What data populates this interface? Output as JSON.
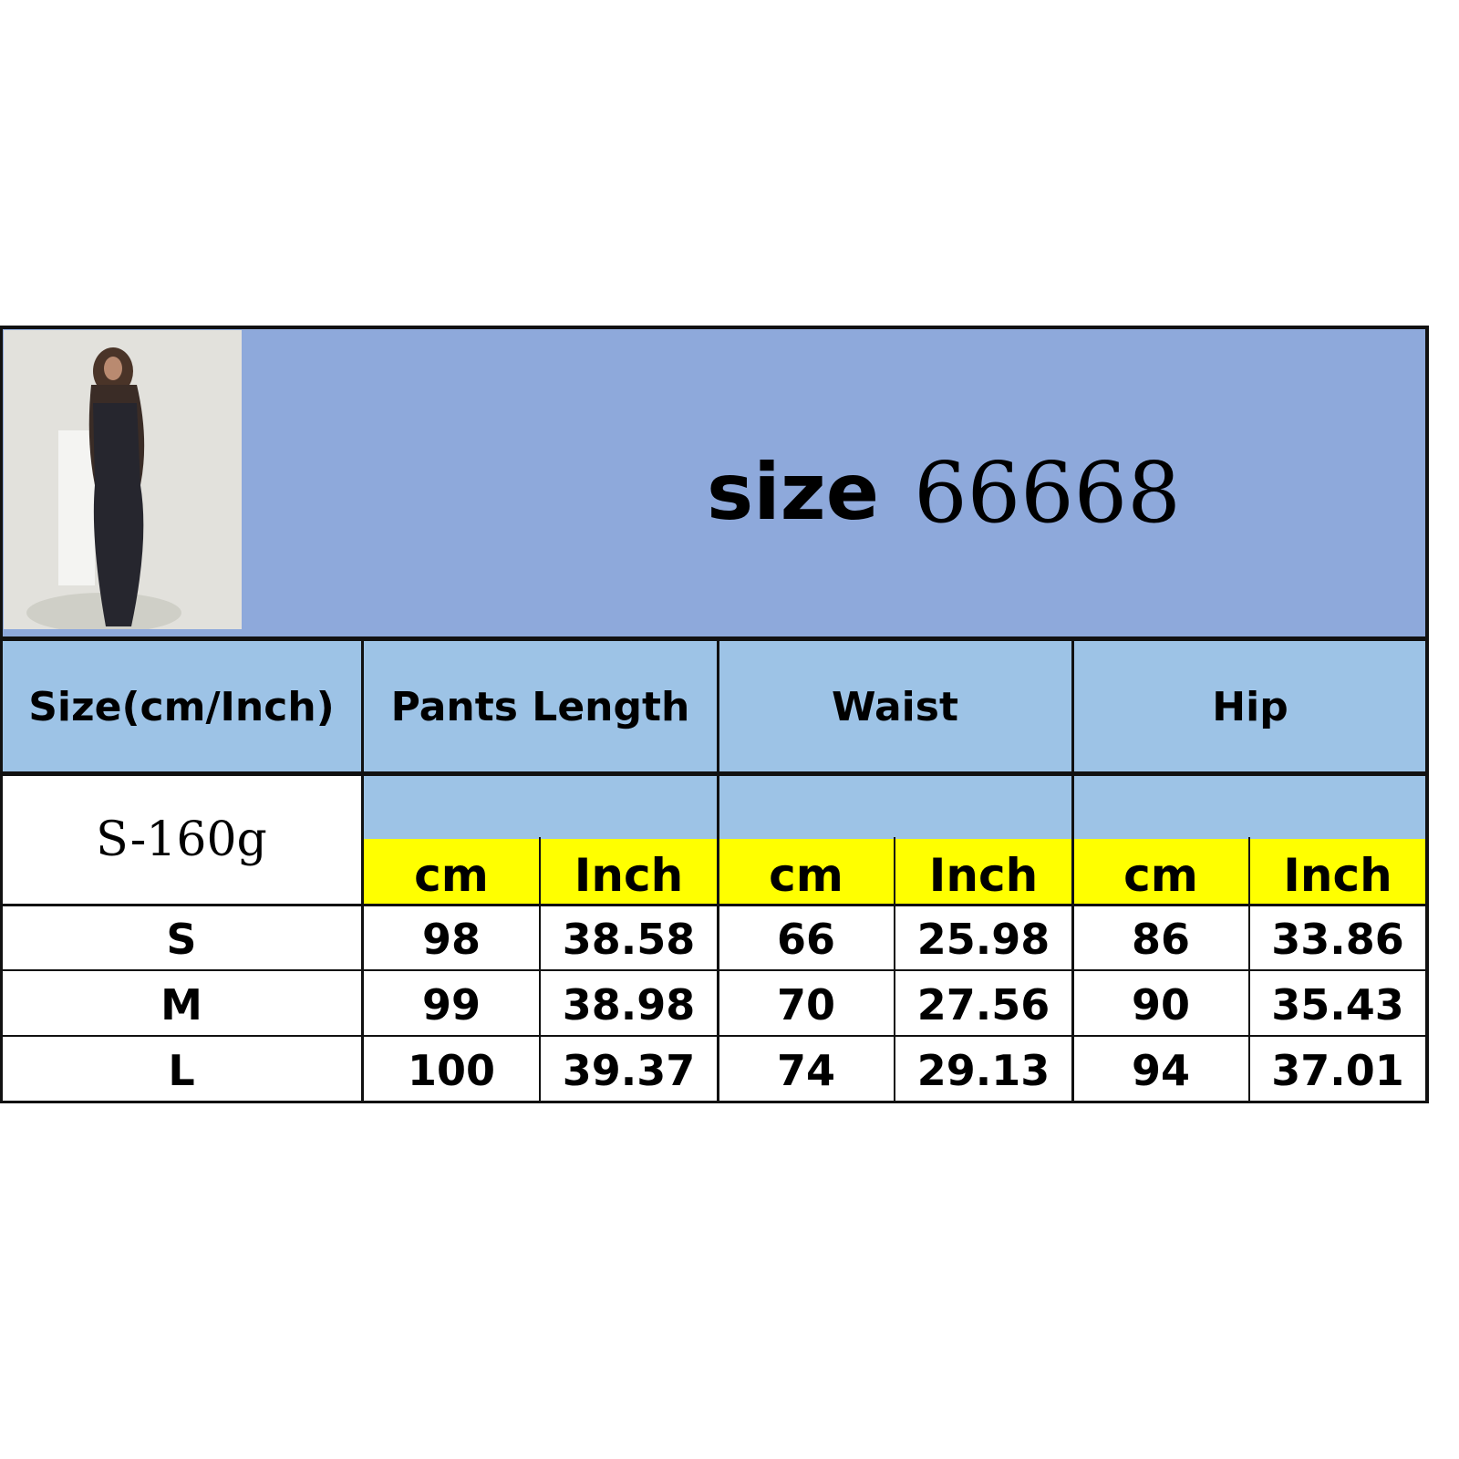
{
  "title": {
    "prefix": "size",
    "code": "66668"
  },
  "colors": {
    "banner": "#8EA9DB",
    "header": "#9DC3E6",
    "unit_row": "#FFFF00",
    "border": "#111111"
  },
  "photo": {
    "alt": "model wearing black lace top and maxi skirt"
  },
  "header": {
    "size_label": "Size(cm/Inch)",
    "columns": [
      "Pants Length",
      "Waist",
      "Hip"
    ]
  },
  "weight_label": "S-160g",
  "units": [
    "cm",
    "Inch",
    "cm",
    "Inch",
    "cm",
    "Inch"
  ],
  "rows": [
    {
      "size": "S",
      "values": [
        "98",
        "38.58",
        "66",
        "25.98",
        "86",
        "33.86"
      ]
    },
    {
      "size": "M",
      "values": [
        "99",
        "38.98",
        "70",
        "27.56",
        "90",
        "35.43"
      ]
    },
    {
      "size": "L",
      "values": [
        "100",
        "39.37",
        "74",
        "29.13",
        "94",
        "37.01"
      ]
    }
  ]
}
